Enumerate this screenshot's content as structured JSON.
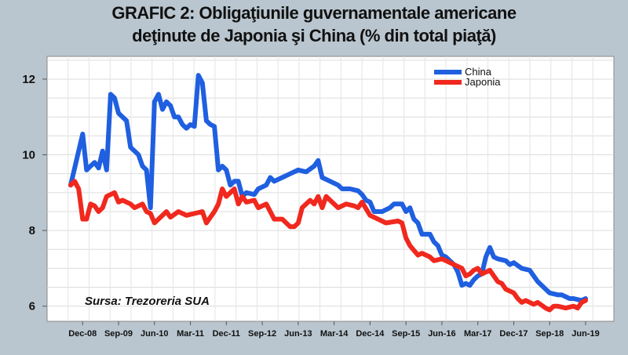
{
  "header": {
    "title_line1": "GRAFIC 2: Obligaţiunile guvernamentale americane",
    "title_line2": "deţinute de Japonia şi China (% din total piaţă)"
  },
  "source": "Sursa: Trezoreria SUA",
  "colors": {
    "china": "#1f5fe0",
    "japonia": "#f0281e",
    "background": "#b9c6cf",
    "plot": "#ffffff",
    "grid": "#dddddd"
  },
  "chart_data": {
    "type": "line",
    "title": "GRAFIC 2: Obligaţiunile guvernamentale americane deţinute de Japonia şi China (% din total piaţă)",
    "xlabel": "",
    "ylabel": "",
    "x_range": [
      "2008-09",
      "2019-06"
    ],
    "ylim": [
      5.6,
      12.6
    ],
    "yticks": [
      6,
      8,
      10,
      12
    ],
    "xticks": [
      {
        "label": "Dec-08",
        "date": "2008-12"
      },
      {
        "label": "Sep-09",
        "date": "2009-09"
      },
      {
        "label": "Jun-10",
        "date": "2010-06"
      },
      {
        "label": "Mar-11",
        "date": "2011-03"
      },
      {
        "label": "Dec-11",
        "date": "2011-12"
      },
      {
        "label": "Sep-12",
        "date": "2012-09"
      },
      {
        "label": "Jun-13",
        "date": "2013-06"
      },
      {
        "label": "Mar-14",
        "date": "2014-03"
      },
      {
        "label": "Dec-14",
        "date": "2014-12"
      },
      {
        "label": "Sep-15",
        "date": "2015-09"
      },
      {
        "label": "Jun-16",
        "date": "2016-06"
      },
      {
        "label": "Mar-17",
        "date": "2017-03"
      },
      {
        "label": "Dec-17",
        "date": "2017-12"
      },
      {
        "label": "Sep-18",
        "date": "2018-09"
      },
      {
        "label": "Jun-19",
        "date": "2019-06"
      }
    ],
    "grid": true,
    "legend_position": "top-right",
    "series": [
      {
        "name": "China",
        "color": "#1f5fe0",
        "points": [
          [
            "2008-09",
            9.2
          ],
          [
            "2008-11",
            10.1
          ],
          [
            "2008-12",
            10.55
          ],
          [
            "2009-01",
            9.6
          ],
          [
            "2009-02",
            9.7
          ],
          [
            "2009-03",
            9.8
          ],
          [
            "2009-04",
            9.65
          ],
          [
            "2009-05",
            10.1
          ],
          [
            "2009-06",
            9.6
          ],
          [
            "2009-07",
            11.6
          ],
          [
            "2009-08",
            11.5
          ],
          [
            "2009-09",
            11.1
          ],
          [
            "2009-10",
            11.0
          ],
          [
            "2009-11",
            10.9
          ],
          [
            "2009-12",
            10.2
          ],
          [
            "2010-01",
            10.1
          ],
          [
            "2010-02",
            10.0
          ],
          [
            "2010-03",
            9.7
          ],
          [
            "2010-04",
            9.6
          ],
          [
            "2010-05",
            8.6
          ],
          [
            "2010-06",
            11.4
          ],
          [
            "2010-07",
            11.6
          ],
          [
            "2010-08",
            11.2
          ],
          [
            "2010-09",
            11.4
          ],
          [
            "2010-10",
            11.3
          ],
          [
            "2010-11",
            11.0
          ],
          [
            "2010-12",
            11.0
          ],
          [
            "2011-01",
            10.8
          ],
          [
            "2011-02",
            10.7
          ],
          [
            "2011-03",
            10.8
          ],
          [
            "2011-04",
            10.75
          ],
          [
            "2011-05",
            12.1
          ],
          [
            "2011-06",
            11.9
          ],
          [
            "2011-07",
            10.9
          ],
          [
            "2011-08",
            10.8
          ],
          [
            "2011-09",
            10.75
          ],
          [
            "2011-10",
            9.6
          ],
          [
            "2011-11",
            9.7
          ],
          [
            "2011-12",
            9.6
          ],
          [
            "2012-01",
            9.2
          ],
          [
            "2012-02",
            9.3
          ],
          [
            "2012-03",
            9.3
          ],
          [
            "2012-04",
            8.9
          ],
          [
            "2012-05",
            9.0
          ],
          [
            "2012-07",
            8.95
          ],
          [
            "2012-08",
            9.1
          ],
          [
            "2012-10",
            9.2
          ],
          [
            "2012-11",
            9.4
          ],
          [
            "2012-12",
            9.3
          ],
          [
            "2013-02",
            9.4
          ],
          [
            "2013-04",
            9.5
          ],
          [
            "2013-06",
            9.6
          ],
          [
            "2013-08",
            9.55
          ],
          [
            "2013-10",
            9.7
          ],
          [
            "2013-11",
            9.85
          ],
          [
            "2013-12",
            9.4
          ],
          [
            "2014-02",
            9.3
          ],
          [
            "2014-04",
            9.2
          ],
          [
            "2014-05",
            9.1
          ],
          [
            "2014-07",
            9.1
          ],
          [
            "2014-09",
            9.05
          ],
          [
            "2014-10",
            8.95
          ],
          [
            "2014-11",
            8.8
          ],
          [
            "2014-12",
            8.75
          ],
          [
            "2015-01",
            8.5
          ],
          [
            "2015-03",
            8.5
          ],
          [
            "2015-04",
            8.55
          ],
          [
            "2015-05",
            8.6
          ],
          [
            "2015-06",
            8.7
          ],
          [
            "2015-08",
            8.7
          ],
          [
            "2015-09",
            8.5
          ],
          [
            "2015-10",
            8.6
          ],
          [
            "2015-11",
            8.3
          ],
          [
            "2015-12",
            8.2
          ],
          [
            "2016-01",
            7.9
          ],
          [
            "2016-03",
            7.9
          ],
          [
            "2016-04",
            7.7
          ],
          [
            "2016-05",
            7.6
          ],
          [
            "2016-06",
            7.35
          ],
          [
            "2016-07",
            7.3
          ],
          [
            "2016-09",
            7.1
          ],
          [
            "2016-10",
            6.9
          ],
          [
            "2016-11",
            6.55
          ],
          [
            "2016-12",
            6.6
          ],
          [
            "2017-01",
            6.55
          ],
          [
            "2017-02",
            6.7
          ],
          [
            "2017-03",
            6.8
          ],
          [
            "2017-04",
            6.85
          ],
          [
            "2017-05",
            7.3
          ],
          [
            "2017-06",
            7.55
          ],
          [
            "2017-07",
            7.3
          ],
          [
            "2017-08",
            7.25
          ],
          [
            "2017-10",
            7.2
          ],
          [
            "2017-11",
            7.1
          ],
          [
            "2017-12",
            7.15
          ],
          [
            "2018-02",
            7.0
          ],
          [
            "2018-04",
            6.95
          ],
          [
            "2018-05",
            6.8
          ],
          [
            "2018-06",
            6.65
          ],
          [
            "2018-08",
            6.45
          ],
          [
            "2018-09",
            6.35
          ],
          [
            "2018-11",
            6.3
          ],
          [
            "2018-12",
            6.3
          ],
          [
            "2019-01",
            6.25
          ],
          [
            "2019-02",
            6.2
          ],
          [
            "2019-03",
            6.2
          ],
          [
            "2019-05",
            6.15
          ],
          [
            "2019-06",
            6.2
          ]
        ]
      },
      {
        "name": "Japonia",
        "color": "#f0281e",
        "points": [
          [
            "2008-09",
            9.2
          ],
          [
            "2008-10",
            9.3
          ],
          [
            "2008-11",
            9.1
          ],
          [
            "2008-12",
            8.3
          ],
          [
            "2009-01",
            8.3
          ],
          [
            "2009-02",
            8.7
          ],
          [
            "2009-03",
            8.65
          ],
          [
            "2009-04",
            8.5
          ],
          [
            "2009-05",
            8.6
          ],
          [
            "2009-06",
            8.9
          ],
          [
            "2009-08",
            9.0
          ],
          [
            "2009-09",
            8.75
          ],
          [
            "2009-10",
            8.8
          ],
          [
            "2009-12",
            8.7
          ],
          [
            "2010-01",
            8.6
          ],
          [
            "2010-03",
            8.7
          ],
          [
            "2010-04",
            8.5
          ],
          [
            "2010-05",
            8.45
          ],
          [
            "2010-06",
            8.2
          ],
          [
            "2010-08",
            8.4
          ],
          [
            "2010-09",
            8.5
          ],
          [
            "2010-10",
            8.35
          ],
          [
            "2010-12",
            8.5
          ],
          [
            "2011-02",
            8.4
          ],
          [
            "2011-04",
            8.45
          ],
          [
            "2011-06",
            8.5
          ],
          [
            "2011-07",
            8.2
          ],
          [
            "2011-09",
            8.5
          ],
          [
            "2011-10",
            8.7
          ],
          [
            "2011-11",
            9.1
          ],
          [
            "2011-12",
            8.9
          ],
          [
            "2012-01",
            9.0
          ],
          [
            "2012-02",
            9.1
          ],
          [
            "2012-03",
            8.7
          ],
          [
            "2012-04",
            8.9
          ],
          [
            "2012-05",
            8.75
          ],
          [
            "2012-07",
            8.8
          ],
          [
            "2012-08",
            8.6
          ],
          [
            "2012-10",
            8.7
          ],
          [
            "2012-11",
            8.5
          ],
          [
            "2012-12",
            8.3
          ],
          [
            "2013-02",
            8.3
          ],
          [
            "2013-03",
            8.2
          ],
          [
            "2013-04",
            8.1
          ],
          [
            "2013-05",
            8.1
          ],
          [
            "2013-06",
            8.2
          ],
          [
            "2013-07",
            8.6
          ],
          [
            "2013-09",
            8.8
          ],
          [
            "2013-10",
            8.7
          ],
          [
            "2013-11",
            8.9
          ],
          [
            "2013-12",
            8.6
          ],
          [
            "2014-01",
            8.9
          ],
          [
            "2014-02",
            8.8
          ],
          [
            "2014-04",
            8.6
          ],
          [
            "2014-06",
            8.7
          ],
          [
            "2014-08",
            8.65
          ],
          [
            "2014-09",
            8.6
          ],
          [
            "2014-10",
            8.75
          ],
          [
            "2014-12",
            8.4
          ],
          [
            "2015-02",
            8.3
          ],
          [
            "2015-04",
            8.2
          ],
          [
            "2015-07",
            8.25
          ],
          [
            "2015-08",
            8.2
          ],
          [
            "2015-09",
            7.8
          ],
          [
            "2015-10",
            7.6
          ],
          [
            "2015-12",
            7.35
          ],
          [
            "2016-01",
            7.4
          ],
          [
            "2016-03",
            7.3
          ],
          [
            "2016-04",
            7.2
          ],
          [
            "2016-06",
            7.25
          ],
          [
            "2016-07",
            7.2
          ],
          [
            "2016-09",
            7.1
          ],
          [
            "2016-11",
            7.0
          ],
          [
            "2016-12",
            6.8
          ],
          [
            "2017-01",
            6.85
          ],
          [
            "2017-02",
            6.95
          ],
          [
            "2017-03",
            7.0
          ],
          [
            "2017-04",
            6.85
          ],
          [
            "2017-05",
            6.9
          ],
          [
            "2017-06",
            6.95
          ],
          [
            "2017-07",
            6.8
          ],
          [
            "2017-08",
            6.65
          ],
          [
            "2017-09",
            6.6
          ],
          [
            "2017-10",
            6.45
          ],
          [
            "2017-11",
            6.4
          ],
          [
            "2017-12",
            6.35
          ],
          [
            "2018-01",
            6.2
          ],
          [
            "2018-02",
            6.1
          ],
          [
            "2018-03",
            6.15
          ],
          [
            "2018-05",
            6.05
          ],
          [
            "2018-06",
            6.1
          ],
          [
            "2018-08",
            5.95
          ],
          [
            "2018-09",
            5.9
          ],
          [
            "2018-10",
            6.0
          ],
          [
            "2018-11",
            6.0
          ],
          [
            "2019-01",
            5.95
          ],
          [
            "2019-03",
            6.0
          ],
          [
            "2019-04",
            5.95
          ],
          [
            "2019-05",
            6.1
          ],
          [
            "2019-06",
            6.15
          ]
        ]
      }
    ]
  }
}
